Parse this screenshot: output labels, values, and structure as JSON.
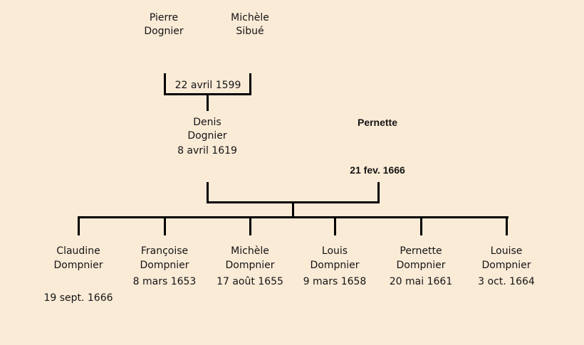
{
  "diagram": {
    "background_color": "#FAEBD7",
    "line_color": "#000000",
    "generation1": {
      "father": {
        "first_name": "Pierre",
        "last_name": "Dognier"
      },
      "mother": {
        "first_name": "Michèle",
        "last_name": "Sibué"
      },
      "marriage_date": "22 avril 1599"
    },
    "generation2": {
      "father": {
        "first_name": "Denis",
        "last_name": "Dognier",
        "date": "8 avril 1619"
      },
      "mother": {
        "first_name": "Pernette",
        "date": "21 fev. 1666"
      }
    },
    "children": [
      {
        "first_name": "Claudine",
        "last_name": "Dompnier",
        "date": "19 sept. 1666"
      },
      {
        "first_name": "Françoise",
        "last_name": "Dompnier",
        "date": "8 mars 1653"
      },
      {
        "first_name": "Michèle",
        "last_name": "Dompnier",
        "date": "17 août 1655"
      },
      {
        "first_name": "Louis",
        "last_name": "Dompnier",
        "date": "9 mars 1658"
      },
      {
        "first_name": "Pernette",
        "last_name": "Dompnier",
        "date": "20 mai 1661"
      },
      {
        "first_name": "Louise",
        "last_name": "Dompnier",
        "date": "3 oct. 1664"
      }
    ]
  }
}
